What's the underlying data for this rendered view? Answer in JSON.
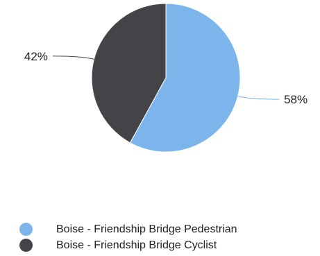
{
  "chart_data": {
    "type": "pie",
    "series": [
      {
        "name": "Boise - Friendship Bridge Pedestrian",
        "value": 58,
        "label": "58%",
        "color": "#7cb5ec"
      },
      {
        "name": "Boise - Friendship Bridge Cyclist",
        "value": 42,
        "label": "42%",
        "color": "#434348"
      }
    ],
    "legend_position": "bottom-left"
  }
}
